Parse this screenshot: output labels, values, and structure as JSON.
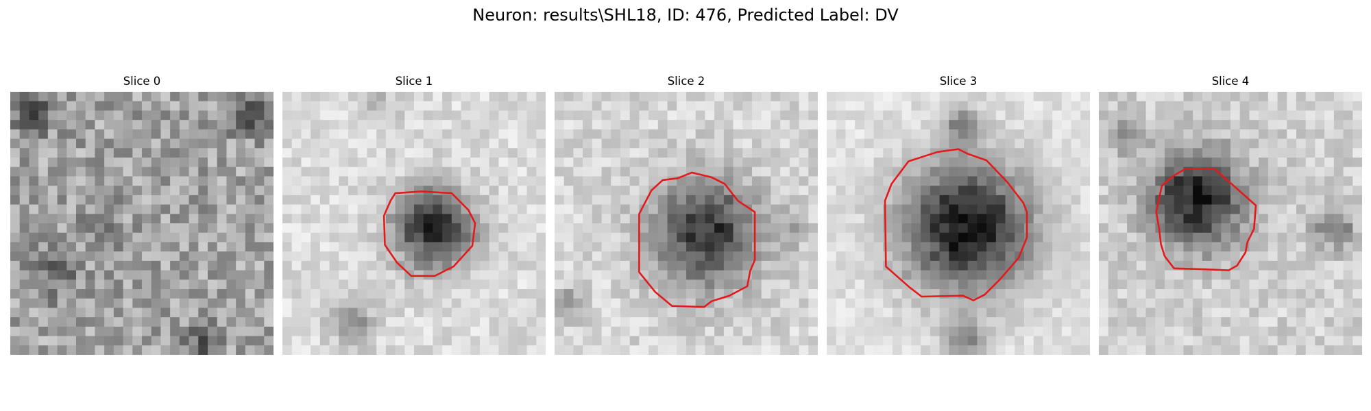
{
  "figure": {
    "title": "Neuron: results\\SHL18, ID: 476, Predicted Label: DV"
  },
  "panels": [
    {
      "title": "Slice 0",
      "has_contour": false
    },
    {
      "title": "Slice 1",
      "has_contour": true
    },
    {
      "title": "Slice 2",
      "has_contour": true
    },
    {
      "title": "Slice 3",
      "has_contour": true
    },
    {
      "title": "Slice 4",
      "has_contour": true
    }
  ],
  "image": {
    "colormap": "grayscale",
    "grid": "28x28 pixels per slice",
    "contour_color": "#e31a1c"
  }
}
